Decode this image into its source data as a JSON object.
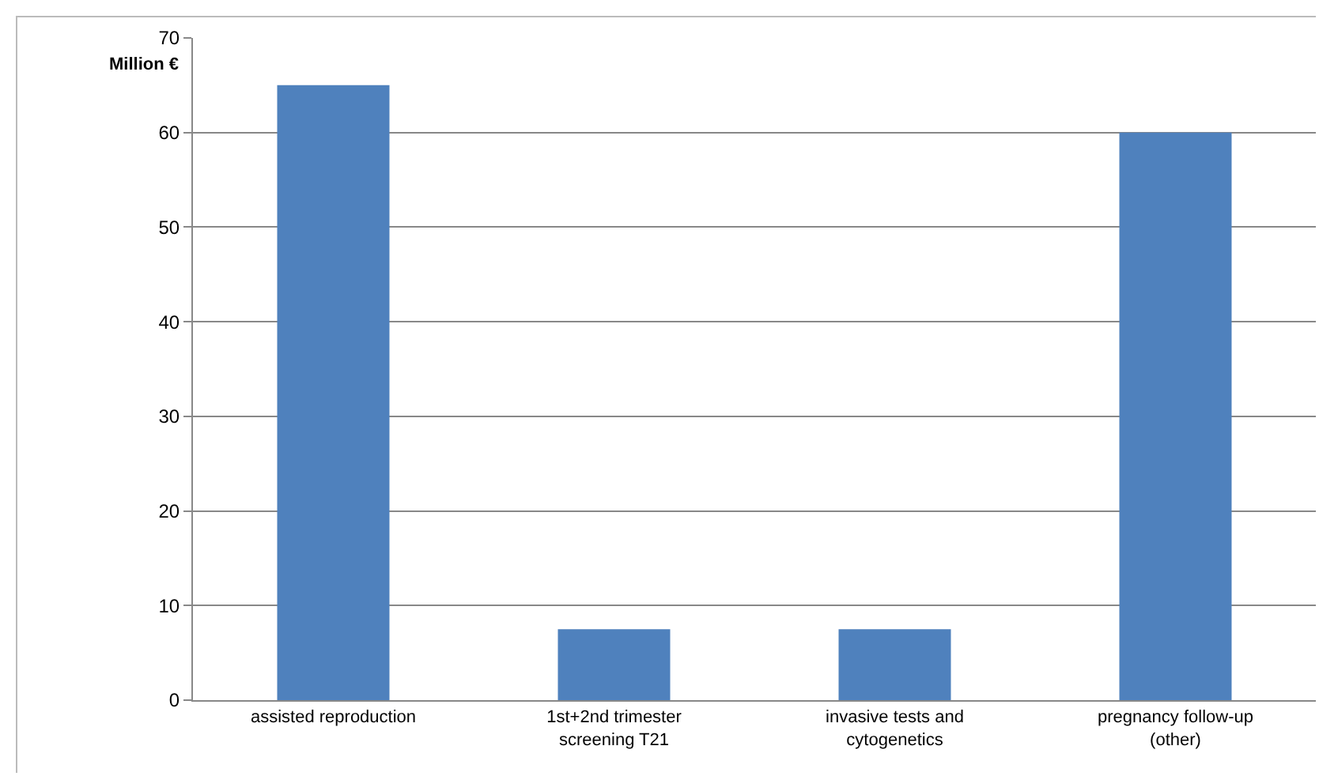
{
  "chart_data": {
    "type": "bar",
    "ylabel": "Million €",
    "categories": [
      "assisted reproduction",
      "1st+2nd trimester\nscreening T21",
      "invasive tests and\ncytogenetics",
      "pregnancy follow-up\n(other)"
    ],
    "values": [
      65,
      7.5,
      7.5,
      60
    ],
    "color": "#4f81bd",
    "ylim": [
      0,
      70
    ],
    "yticks": [
      0,
      10,
      20,
      30,
      40,
      50,
      60,
      70
    ],
    "grid": "y",
    "legend": false
  }
}
